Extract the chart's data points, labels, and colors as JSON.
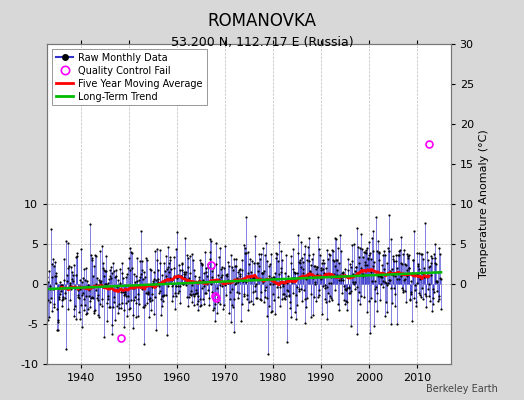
{
  "title": "ROMANOVKA",
  "subtitle": "53.200 N, 112.717 E (Russia)",
  "ylabel": "Temperature Anomaly (°C)",
  "credit": "Berkeley Earth",
  "xlim": [
    1933,
    2017
  ],
  "ylim": [
    -10,
    30
  ],
  "yticks_left": [
    -10,
    -5,
    0,
    5,
    10
  ],
  "yticks_right": [
    0,
    5,
    10,
    15,
    20,
    25,
    30
  ],
  "xticks": [
    1940,
    1950,
    1960,
    1970,
    1980,
    1990,
    2000,
    2010
  ],
  "bg_color": "#d8d8d8",
  "plot_bg_color": "#ffffff",
  "raw_line_color": "#3333cc",
  "raw_dot_color": "#000000",
  "qc_fail_color": "#ff00ff",
  "moving_avg_color": "#ff0000",
  "trend_color": "#00bb00",
  "seed": 12,
  "start_year": 1933,
  "end_year": 2015,
  "base_anomaly": -0.3,
  "trend_slope": 0.018,
  "noise_std": 2.5,
  "moving_avg_window": 60,
  "qc_fail_points": [
    {
      "year": 1948.4,
      "value": -6.8
    },
    {
      "year": 1967.2,
      "value": 2.4
    },
    {
      "year": 1967.9,
      "value": -1.5
    },
    {
      "year": 1968.1,
      "value": -1.8
    },
    {
      "year": 2012.4,
      "value": 17.5
    }
  ],
  "title_fontsize": 12,
  "subtitle_fontsize": 9,
  "tick_fontsize": 8,
  "ylabel_fontsize": 8
}
